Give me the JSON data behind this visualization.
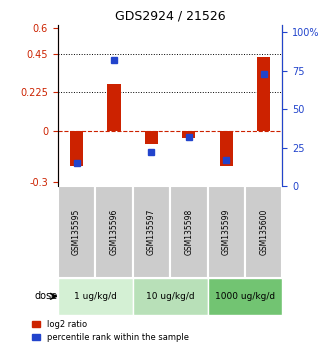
{
  "title": "GDS2924 / 21526",
  "samples": [
    "GSM135595",
    "GSM135596",
    "GSM135597",
    "GSM135598",
    "GSM135599",
    "GSM135600"
  ],
  "log2_ratio": [
    -0.205,
    0.275,
    -0.075,
    -0.04,
    -0.205,
    0.43
  ],
  "percentile_rank": [
    15.0,
    82.0,
    22.0,
    32.0,
    17.0,
    73.0
  ],
  "doses": [
    {
      "label": "1 ug/kg/d",
      "samples": [
        0,
        1
      ],
      "color": "#c8f0c8"
    },
    {
      "label": "10 ug/kg/d",
      "samples": [
        2,
        3
      ],
      "color": "#a8e0a8"
    },
    {
      "label": "1000 ug/kg/d",
      "samples": [
        4,
        5
      ],
      "color": "#78cc78"
    }
  ],
  "ylim_left": [
    -0.32,
    0.62
  ],
  "ylim_right": [
    0,
    105
  ],
  "yticks_left": [
    -0.3,
    0.0,
    0.225,
    0.45,
    0.6
  ],
  "ytick_labels_left": [
    "-0.3",
    "0",
    "0.225",
    "0.45",
    "0.6"
  ],
  "yticks_right": [
    0,
    25,
    50,
    75,
    100
  ],
  "ytick_labels_right": [
    "0",
    "25",
    "50",
    "75",
    "100%"
  ],
  "hlines": [
    0.225,
    0.45
  ],
  "red_color": "#cc2200",
  "blue_color": "#2244cc",
  "bar_width": 0.35,
  "blue_marker_size": 6,
  "dose_label": "dose",
  "legend_red": "log2 ratio",
  "legend_blue": "percentile rank within the sample",
  "sample_bg_color": "#cccccc",
  "dose_bg_colors": [
    "#d4f0d4",
    "#b8e0b8",
    "#72c472"
  ],
  "zero_line_color": "#cc2200",
  "zero_line_style": "--"
}
